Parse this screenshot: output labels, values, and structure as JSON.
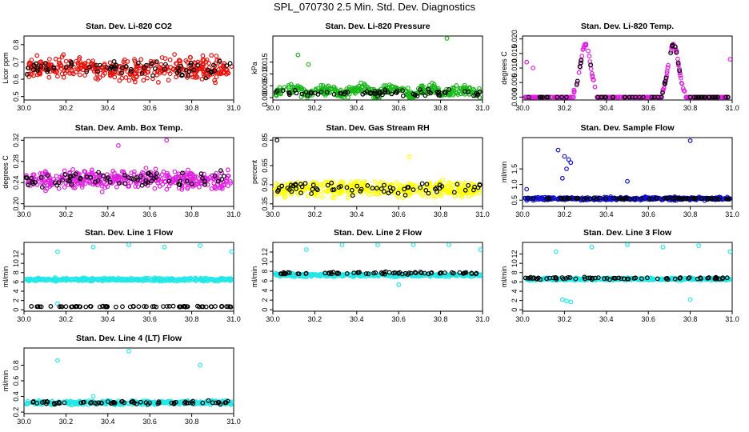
{
  "figure": {
    "title": "SPL_070730  2.5 Min. Std. Dev. Diagnostics"
  },
  "colors": {
    "overlay": "#000000"
  },
  "chart_data": [
    {
      "type": "scatter",
      "title": "Stan. Dev. Li-820 CO2",
      "xlabel": "",
      "ylabel": "Licor ppm",
      "xlim": [
        30.0,
        31.0
      ],
      "ylim": [
        0.48,
        0.85
      ],
      "xticks": [
        30.0,
        30.2,
        30.4,
        30.6,
        30.8,
        31.0
      ],
      "yticks": [
        0.5,
        0.6,
        0.7,
        0.8
      ],
      "color": "#e8120c",
      "series": [
        {
          "name": "primary",
          "profile": "noise",
          "base": 0.66,
          "spread": 0.09,
          "extra": []
        },
        {
          "name": "overlay",
          "profile": "noise",
          "base": 0.66,
          "spread": 0.07,
          "extra": []
        }
      ]
    },
    {
      "type": "scatter",
      "title": "Stan. Dev. Li-820 Pressure",
      "xlabel": "",
      "ylabel": "kPa",
      "xlim": [
        30.0,
        31.0
      ],
      "ylim": [
        -0.001,
        0.026
      ],
      "xticks": [
        30.0,
        30.2,
        30.4,
        30.6,
        30.8,
        31.0
      ],
      "yticks": [
        0.0,
        0.005,
        0.01,
        0.015
      ],
      "color": "#18b818",
      "series": [
        {
          "name": "primary",
          "profile": "pressure",
          "base": 0.004,
          "spread": 0.003,
          "extra": [
            [
              30.83,
              0.025
            ],
            [
              30.12,
              0.018
            ],
            [
              30.17,
              0.014
            ]
          ]
        },
        {
          "name": "overlay",
          "profile": "flat",
          "base": 0.002,
          "spread": 0.002,
          "extra": []
        }
      ]
    },
    {
      "type": "scatter",
      "title": "Stan. Dev. Li-820 Temp.",
      "xlabel": "",
      "ylabel": "degrees C",
      "xlim": [
        30.0,
        31.0
      ],
      "ylim": [
        -0.001,
        0.021
      ],
      "xticks": [
        30.0,
        30.2,
        30.4,
        30.6,
        30.8,
        31.0
      ],
      "yticks": [
        0.0,
        0.005,
        0.01,
        0.015,
        0.02
      ],
      "color": "#e01ee0",
      "series": [
        {
          "name": "primary",
          "profile": "temp",
          "base": 0.0,
          "spread": 0.001,
          "extra": [
            [
              30.02,
              0.012
            ],
            [
              30.05,
              0.01
            ],
            [
              30.99,
              0.013
            ]
          ]
        },
        {
          "name": "overlay",
          "profile": "temp",
          "base": 0.0,
          "spread": 0.001,
          "extra": []
        }
      ]
    },
    {
      "type": "scatter",
      "title": "Stan. Dev. Amb. Box Temp.",
      "xlabel": "",
      "ylabel": "degrees C",
      "xlim": [
        30.0,
        31.0
      ],
      "ylim": [
        0.195,
        0.325
      ],
      "xticks": [
        30.0,
        30.2,
        30.4,
        30.6,
        30.8,
        31.0
      ],
      "yticks": [
        0.2,
        0.24,
        0.28,
        0.32
      ],
      "color": "#e01ee0",
      "series": [
        {
          "name": "primary",
          "profile": "noise",
          "base": 0.245,
          "spread": 0.025,
          "extra": [
            [
              30.68,
              0.32
            ],
            [
              30.45,
              0.31
            ]
          ]
        },
        {
          "name": "overlay",
          "profile": "noise",
          "base": 0.245,
          "spread": 0.02,
          "extra": []
        }
      ]
    },
    {
      "type": "scatter",
      "title": "Stan. Dev. Gas Stream RH",
      "xlabel": "",
      "ylabel": "percent",
      "xlim": [
        30.0,
        31.0
      ],
      "ylim": [
        0.33,
        0.87
      ],
      "xticks": [
        30.0,
        30.2,
        30.4,
        30.6,
        30.8,
        31.0
      ],
      "yticks": [
        0.35,
        0.5,
        0.65,
        0.85
      ],
      "color": "#ffff00",
      "series": [
        {
          "name": "primary",
          "profile": "noise",
          "base": 0.47,
          "spread": 0.09,
          "extra": [
            [
              30.65,
              0.72
            ]
          ]
        },
        {
          "name": "overlay",
          "profile": "noise",
          "base": 0.47,
          "spread": 0.07,
          "extra": [
            [
              30.02,
              0.85
            ]
          ]
        }
      ]
    },
    {
      "type": "scatter",
      "title": "Stan. Dev. Sample Flow",
      "xlabel": "",
      "ylabel": "ml/min",
      "xlim": [
        30.0,
        31.0
      ],
      "ylim": [
        0.3,
        2.5
      ],
      "xticks": [
        30.0,
        30.2,
        30.4,
        30.6,
        30.8,
        31.0
      ],
      "yticks": [
        0.5,
        1.0,
        1.5
      ],
      "color": "#1010cc",
      "series": [
        {
          "name": "primary",
          "profile": "noise",
          "base": 0.55,
          "spread": 0.07,
          "extra": [
            [
              30.17,
              2.1
            ],
            [
              30.2,
              1.9
            ],
            [
              30.22,
              1.8
            ],
            [
              30.23,
              1.7
            ],
            [
              30.21,
              1.5
            ],
            [
              30.19,
              1.2
            ],
            [
              30.8,
              2.4
            ],
            [
              30.5,
              1.1
            ],
            [
              30.02,
              0.85
            ]
          ]
        },
        {
          "name": "overlay",
          "profile": "noise",
          "base": 0.55,
          "spread": 0.04,
          "extra": []
        }
      ]
    },
    {
      "type": "scatter",
      "title": "Stan. Dev. Line 1 Flow",
      "xlabel": "",
      "ylabel": "ml/min",
      "xlim": [
        30.0,
        31.0
      ],
      "ylim": [
        -0.3,
        14.5
      ],
      "xticks": [
        30.0,
        30.2,
        30.4,
        30.6,
        30.8,
        31.0
      ],
      "yticks": [
        0,
        2,
        4,
        6,
        8,
        10,
        12
      ],
      "color": "#22e8e8",
      "series": [
        {
          "name": "primary",
          "profile": "band",
          "base": 6.5,
          "spread": 0.45,
          "extra": [
            [
              30.16,
              12.5
            ],
            [
              30.33,
              13.5
            ],
            [
              30.5,
              14.0
            ],
            [
              30.67,
              13.5
            ],
            [
              30.84,
              13.8
            ],
            [
              30.99,
              12.5
            ],
            [
              30.16,
              1.3
            ]
          ]
        },
        {
          "name": "overlay",
          "profile": "band",
          "base": 0.7,
          "spread": 0.12,
          "extra": []
        }
      ]
    },
    {
      "type": "scatter",
      "title": "Stan. Dev. Line 2 Flow",
      "xlabel": "",
      "ylabel": "ml/min",
      "xlim": [
        30.0,
        31.0
      ],
      "ylim": [
        -0.3,
        14.0
      ],
      "xticks": [
        30.0,
        30.2,
        30.4,
        30.6,
        30.8,
        31.0
      ],
      "yticks": [
        0,
        2,
        4,
        6,
        8,
        10,
        12
      ],
      "color": "#22e8e8",
      "series": [
        {
          "name": "primary",
          "profile": "band",
          "base": 7.2,
          "spread": 0.5,
          "extra": [
            [
              30.16,
              12.5
            ],
            [
              30.33,
              13.5
            ],
            [
              30.5,
              13.5
            ],
            [
              30.67,
              13.5
            ],
            [
              30.84,
              13.5
            ],
            [
              30.99,
              12.5
            ],
            [
              30.6,
              5.2
            ]
          ]
        },
        {
          "name": "overlay",
          "profile": "band",
          "base": 7.6,
          "spread": 0.35,
          "extra": []
        }
      ]
    },
    {
      "type": "scatter",
      "title": "Stan. Dev. Line 3 Flow",
      "xlabel": "",
      "ylabel": "ml/min",
      "xlim": [
        30.0,
        31.0
      ],
      "ylim": [
        -0.3,
        14.5
      ],
      "xticks": [
        30.0,
        30.2,
        30.4,
        30.6,
        30.8,
        31.0
      ],
      "yticks": [
        0,
        2,
        4,
        6,
        8,
        10,
        12
      ],
      "color": "#22e8e8",
      "series": [
        {
          "name": "primary",
          "profile": "band",
          "base": 6.6,
          "spread": 0.35,
          "extra": [
            [
              30.16,
              12.5
            ],
            [
              30.33,
              13.5
            ],
            [
              30.5,
              14.0
            ],
            [
              30.67,
              13.5
            ],
            [
              30.84,
              13.8
            ],
            [
              30.99,
              12.5
            ],
            [
              30.19,
              2.2
            ],
            [
              30.21,
              1.9
            ],
            [
              30.23,
              1.7
            ],
            [
              30.8,
              2.2
            ]
          ]
        },
        {
          "name": "overlay",
          "profile": "band",
          "base": 6.8,
          "spread": 0.3,
          "extra": []
        }
      ]
    },
    {
      "type": "scatter",
      "title": "Stan. Dev. Line 4 (LT) Flow",
      "xlabel": "",
      "ylabel": "ml/min",
      "xlim": [
        30.0,
        31.0
      ],
      "ylim": [
        0.18,
        1.02
      ],
      "xticks": [
        30.0,
        30.2,
        30.4,
        30.6,
        30.8,
        31.0
      ],
      "yticks": [
        0.2,
        0.4,
        0.6,
        0.8
      ],
      "color": "#22e8e8",
      "series": [
        {
          "name": "primary",
          "profile": "band",
          "base": 0.32,
          "spread": 0.035,
          "extra": [
            [
              30.16,
              0.86
            ],
            [
              30.5,
              0.98
            ],
            [
              30.84,
              0.8
            ],
            [
              30.33,
              0.4
            ]
          ]
        },
        {
          "name": "overlay",
          "profile": "band",
          "base": 0.32,
          "spread": 0.03,
          "extra": []
        }
      ]
    }
  ]
}
